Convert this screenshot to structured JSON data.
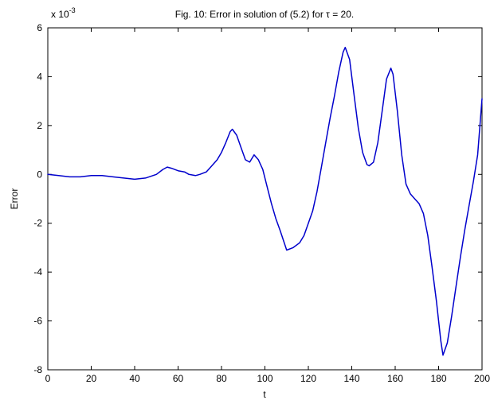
{
  "chart_data": {
    "type": "line",
    "title": "Fig. 10: Error in solution of (5.2) for τ = 20.",
    "xlabel": "t",
    "ylabel": "Error",
    "y_exponent_label": "x 10",
    "y_exponent_power": "-3",
    "xlim": [
      0,
      200
    ],
    "ylim": [
      -8,
      6
    ],
    "xticks": [
      "0",
      "20",
      "40",
      "60",
      "80",
      "100",
      "120",
      "140",
      "160",
      "180",
      "200"
    ],
    "yticks": [
      "-8",
      "-6",
      "-4",
      "-2",
      "0",
      "2",
      "4",
      "6"
    ],
    "grid": false,
    "line_color": "#0000cc",
    "series": [
      {
        "x": [
          0,
          5,
          10,
          15,
          20,
          25,
          30,
          35,
          40,
          45,
          50,
          53,
          55,
          57,
          60,
          63,
          65,
          68,
          70,
          73,
          75,
          78,
          80,
          82,
          84,
          85,
          87,
          89,
          91,
          93,
          95,
          97,
          99,
          101,
          103,
          105,
          107,
          110,
          113,
          116,
          118,
          120,
          122,
          124,
          126,
          128,
          130,
          132,
          134,
          136,
          137,
          139,
          141,
          143,
          145,
          147,
          148,
          150,
          152,
          154,
          156,
          158,
          159,
          161,
          163,
          165,
          167,
          169,
          171,
          173,
          175,
          177,
          179,
          181,
          182,
          184,
          186,
          188,
          190,
          192,
          194,
          196,
          198,
          200
        ],
        "y": [
          0.0,
          -0.05,
          -0.1,
          -0.1,
          -0.05,
          -0.05,
          -0.1,
          -0.15,
          -0.2,
          -0.15,
          0.0,
          0.2,
          0.3,
          0.25,
          0.15,
          0.1,
          0.0,
          -0.05,
          0.0,
          0.1,
          0.3,
          0.6,
          0.9,
          1.3,
          1.75,
          1.85,
          1.6,
          1.1,
          0.6,
          0.5,
          0.8,
          0.6,
          0.2,
          -0.5,
          -1.2,
          -1.8,
          -2.3,
          -3.1,
          -3.0,
          -2.8,
          -2.5,
          -2.0,
          -1.5,
          -0.7,
          0.3,
          1.3,
          2.3,
          3.2,
          4.2,
          5.0,
          5.2,
          4.7,
          3.3,
          1.9,
          0.9,
          0.4,
          0.35,
          0.5,
          1.3,
          2.6,
          3.9,
          4.35,
          4.1,
          2.6,
          0.8,
          -0.4,
          -0.8,
          -1.0,
          -1.2,
          -1.6,
          -2.5,
          -3.8,
          -5.2,
          -6.8,
          -7.4,
          -6.9,
          -5.8,
          -4.6,
          -3.4,
          -2.3,
          -1.3,
          -0.3,
          0.8,
          3.1
        ]
      }
    ]
  }
}
